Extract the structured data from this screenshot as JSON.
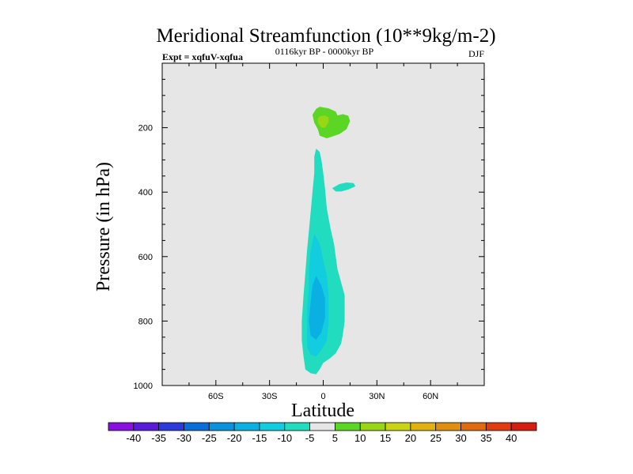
{
  "chart_data": {
    "type": "contour",
    "title": "Meridional Streamfunction (10**9kg/m-2)",
    "subtitle_left": "Expt = xqfuV-xqfua",
    "subtitle_center": "0116kyr BP - 0000kyr BP",
    "subtitle_right": "DJF",
    "xlabel": "Latitude",
    "ylabel": "Pressure (in hPa)",
    "xlim": [
      -90,
      90
    ],
    "ylim": [
      1000,
      0
    ],
    "x_ticks": [
      {
        "value": -60,
        "label": "60S"
      },
      {
        "value": -30,
        "label": "30S"
      },
      {
        "value": 0,
        "label": "0"
      },
      {
        "value": 30,
        "label": "30N"
      },
      {
        "value": 60,
        "label": "60N"
      }
    ],
    "y_ticks": [
      {
        "value": 200,
        "label": "200"
      },
      {
        "value": 400,
        "label": "400"
      },
      {
        "value": 600,
        "label": "600"
      },
      {
        "value": 800,
        "label": "800"
      },
      {
        "value": 1000,
        "label": "1000"
      }
    ],
    "background_color": "#e6e6e6",
    "colorbar": {
      "labels": [
        "-40",
        "-35",
        "-30",
        "-25",
        "-20",
        "-15",
        "-10",
        "-5",
        "5",
        "10",
        "15",
        "20",
        "25",
        "30",
        "35",
        "40"
      ],
      "colors": [
        "#8a10e0",
        "#5a1bd8",
        "#2b3ad8",
        "#0a6ed8",
        "#0a92dc",
        "#0ab0e2",
        "#12cce0",
        "#22dcc0",
        "#e6e6e6",
        "#5cd624",
        "#98d616",
        "#c8d414",
        "#e0b210",
        "#e08e10",
        "#e06a10",
        "#e03c10",
        "#d41e10"
      ]
    },
    "regions": [
      {
        "name": "upper-positive-outer",
        "level": 5,
        "color": "#5cd624",
        "points": [
          [
            -2,
            135
          ],
          [
            3,
            140
          ],
          [
            7,
            150
          ],
          [
            8,
            162
          ],
          [
            11,
            158
          ],
          [
            14,
            163
          ],
          [
            15,
            180
          ],
          [
            13,
            205
          ],
          [
            9,
            220
          ],
          [
            2,
            233
          ],
          [
            -2,
            225
          ],
          [
            -3,
            205
          ],
          [
            -5,
            185
          ],
          [
            -6,
            160
          ],
          [
            -4,
            142
          ]
        ]
      },
      {
        "name": "upper-positive-core",
        "level": 10,
        "color": "#98d616",
        "points": [
          [
            -2,
            165
          ],
          [
            1,
            162
          ],
          [
            3,
            168
          ],
          [
            3,
            182
          ],
          [
            1,
            200
          ],
          [
            -1,
            200
          ],
          [
            -3,
            185
          ],
          [
            -3,
            172
          ]
        ]
      },
      {
        "name": "mid-negative-lobe",
        "level": -5,
        "color": "#22dcc0",
        "points": [
          [
            5,
            388
          ],
          [
            9,
            375
          ],
          [
            13,
            370
          ],
          [
            17,
            372
          ],
          [
            18,
            382
          ],
          [
            14,
            392
          ],
          [
            10,
            398
          ],
          [
            7,
            398
          ]
        ]
      },
      {
        "name": "lower-negative-outer",
        "level": -5,
        "color": "#22dcc0",
        "points": [
          [
            -4,
            265
          ],
          [
            -2,
            275
          ],
          [
            -1,
            300
          ],
          [
            0,
            340
          ],
          [
            1,
            390
          ],
          [
            2,
            450
          ],
          [
            4,
            510
          ],
          [
            6,
            560
          ],
          [
            7,
            600
          ],
          [
            8,
            640
          ],
          [
            10,
            680
          ],
          [
            12,
            720
          ],
          [
            12,
            800
          ],
          [
            11,
            840
          ],
          [
            10,
            870
          ],
          [
            7,
            900
          ],
          [
            4,
            915
          ],
          [
            0,
            930
          ],
          [
            -2,
            950
          ],
          [
            -4,
            965
          ],
          [
            -7,
            962
          ],
          [
            -10,
            950
          ],
          [
            -11,
            910
          ],
          [
            -12,
            860
          ],
          [
            -12,
            800
          ],
          [
            -11,
            720
          ],
          [
            -10,
            650
          ],
          [
            -9,
            580
          ],
          [
            -8,
            520
          ],
          [
            -7,
            460
          ],
          [
            -6,
            400
          ],
          [
            -5,
            340
          ],
          [
            -5,
            290
          ]
        ]
      },
      {
        "name": "lower-negative-mid",
        "level": -10,
        "color": "#12cce0",
        "points": [
          [
            -5,
            530
          ],
          [
            -2,
            560
          ],
          [
            0,
            610
          ],
          [
            2,
            660
          ],
          [
            3,
            720
          ],
          [
            3,
            800
          ],
          [
            2,
            860
          ],
          [
            -1,
            890
          ],
          [
            -4,
            910
          ],
          [
            -7,
            905
          ],
          [
            -9,
            880
          ],
          [
            -9,
            820
          ],
          [
            -9,
            760
          ],
          [
            -8,
            700
          ],
          [
            -8,
            640
          ],
          [
            -7,
            580
          ]
        ]
      },
      {
        "name": "lower-negative-core",
        "level": -15,
        "color": "#0ab0e2",
        "points": [
          [
            -4,
            660
          ],
          [
            -1,
            690
          ],
          [
            1,
            730
          ],
          [
            1,
            790
          ],
          [
            -1,
            835
          ],
          [
            -4,
            858
          ],
          [
            -7,
            845
          ],
          [
            -8,
            800
          ],
          [
            -7,
            740
          ],
          [
            -6,
            690
          ]
        ]
      }
    ]
  }
}
